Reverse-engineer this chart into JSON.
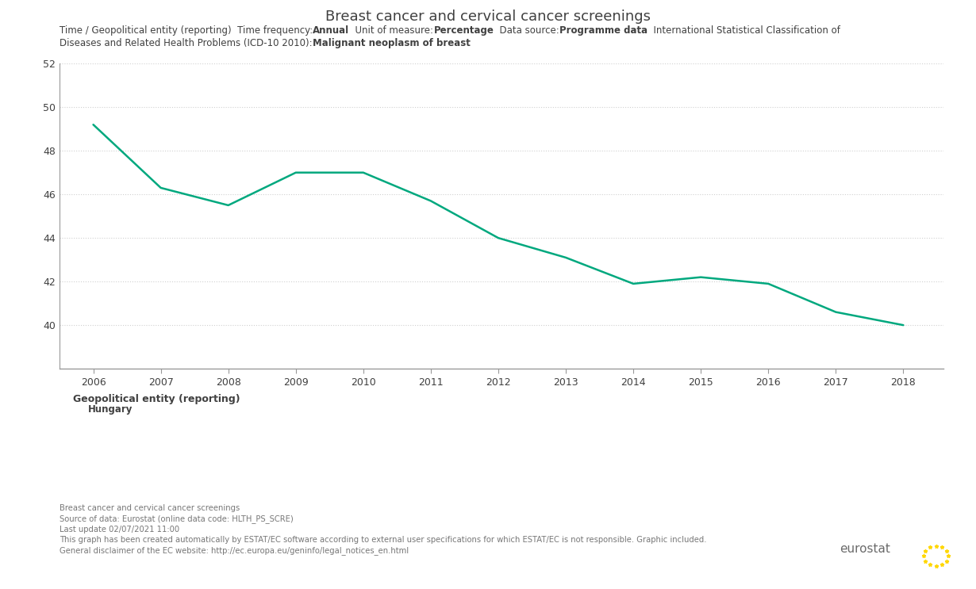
{
  "title": "Breast cancer and cervical cancer screenings",
  "years": [
    2006,
    2007,
    2008,
    2009,
    2010,
    2011,
    2012,
    2013,
    2014,
    2015,
    2016,
    2017,
    2018
  ],
  "values": [
    49.2,
    46.3,
    45.5,
    47.0,
    47.0,
    45.7,
    44.0,
    43.1,
    41.9,
    42.2,
    41.9,
    40.6,
    40.0
  ],
  "line_color": "#00a87e",
  "ylim_min": 38,
  "ylim_max": 52,
  "yticks": [
    40,
    42,
    44,
    46,
    48,
    50,
    52
  ],
  "subtitle_parts_r1": [
    [
      "Time / Geopolitical entity (reporting)  Time frequency:",
      false
    ],
    [
      "Annual",
      true
    ],
    [
      "  Unit of measure:",
      false
    ],
    [
      "Percentage",
      true
    ],
    [
      "  Data source:",
      false
    ],
    [
      "Programme data",
      true
    ],
    [
      "  International Statistical Classification of",
      false
    ]
  ],
  "subtitle_parts_r2": [
    [
      "Diseases and Related Health Problems (ICD-10 2010):",
      false
    ],
    [
      "Malignant neoplasm of breast",
      true
    ]
  ],
  "legend_title": "Geopolitical entity (reporting)",
  "legend_label": "Hungary",
  "footer_lines": [
    "Breast cancer and cervical cancer screenings",
    "Source of data: Eurostat (online data code: HLTH_PS_SCRE)",
    "Last update 02/07/2021 11:00",
    "This graph has been created automatically by ESTAT/EC software according to external user specifications for which ESTAT/EC is not responsible. Graphic included.",
    "General disclaimer of the EC website: http://ec.europa.eu/geninfo/legal_notices_en.html"
  ],
  "background_color": "#ffffff",
  "grid_color": "#d0d0d0",
  "axis_color": "#999999",
  "text_color": "#404040",
  "footer_color": "#777777",
  "title_fontsize": 13,
  "subtitle_fontsize": 8.5,
  "tick_fontsize": 9,
  "legend_title_fontsize": 9,
  "legend_label_fontsize": 8.5,
  "footer_fontsize": 7.2,
  "eurostat_fontsize": 11
}
